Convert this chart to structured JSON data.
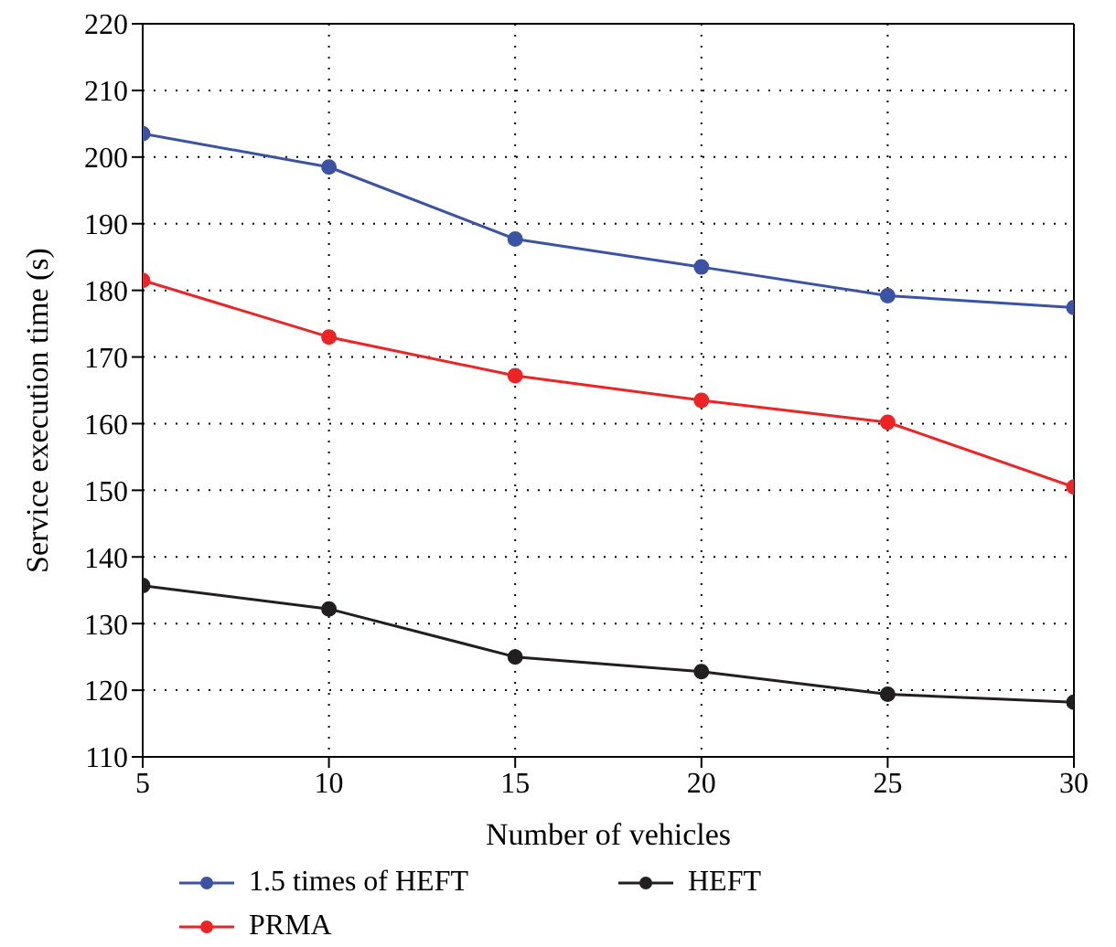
{
  "chart_data": {
    "type": "line",
    "xlabel": "Number of vehicles",
    "ylabel": "Service execution time (s)",
    "x": [
      5,
      10,
      15,
      20,
      25,
      30
    ],
    "series": [
      {
        "name": "1.5 times of HEFT",
        "color": "#3a53a4",
        "values": [
          203.5,
          198.5,
          187.7,
          183.5,
          179.2,
          177.4
        ]
      },
      {
        "name": "PRMA",
        "color": "#ee2424",
        "values": [
          181.5,
          173,
          167.2,
          163.5,
          160.2,
          150.5
        ]
      },
      {
        "name": "HEFT",
        "color": "#231f20",
        "values": [
          135.7,
          132.2,
          125,
          122.8,
          119.4,
          118.2
        ]
      }
    ],
    "xlim": [
      5,
      30
    ],
    "xticks": [
      5,
      10,
      15,
      20,
      25,
      30
    ],
    "ylim": [
      110,
      220
    ],
    "yticks": [
      110,
      120,
      130,
      140,
      150,
      160,
      170,
      180,
      190,
      200,
      210,
      220
    ],
    "grid": true,
    "legend": "bottom",
    "marker": "circle",
    "line_style": "solid"
  }
}
